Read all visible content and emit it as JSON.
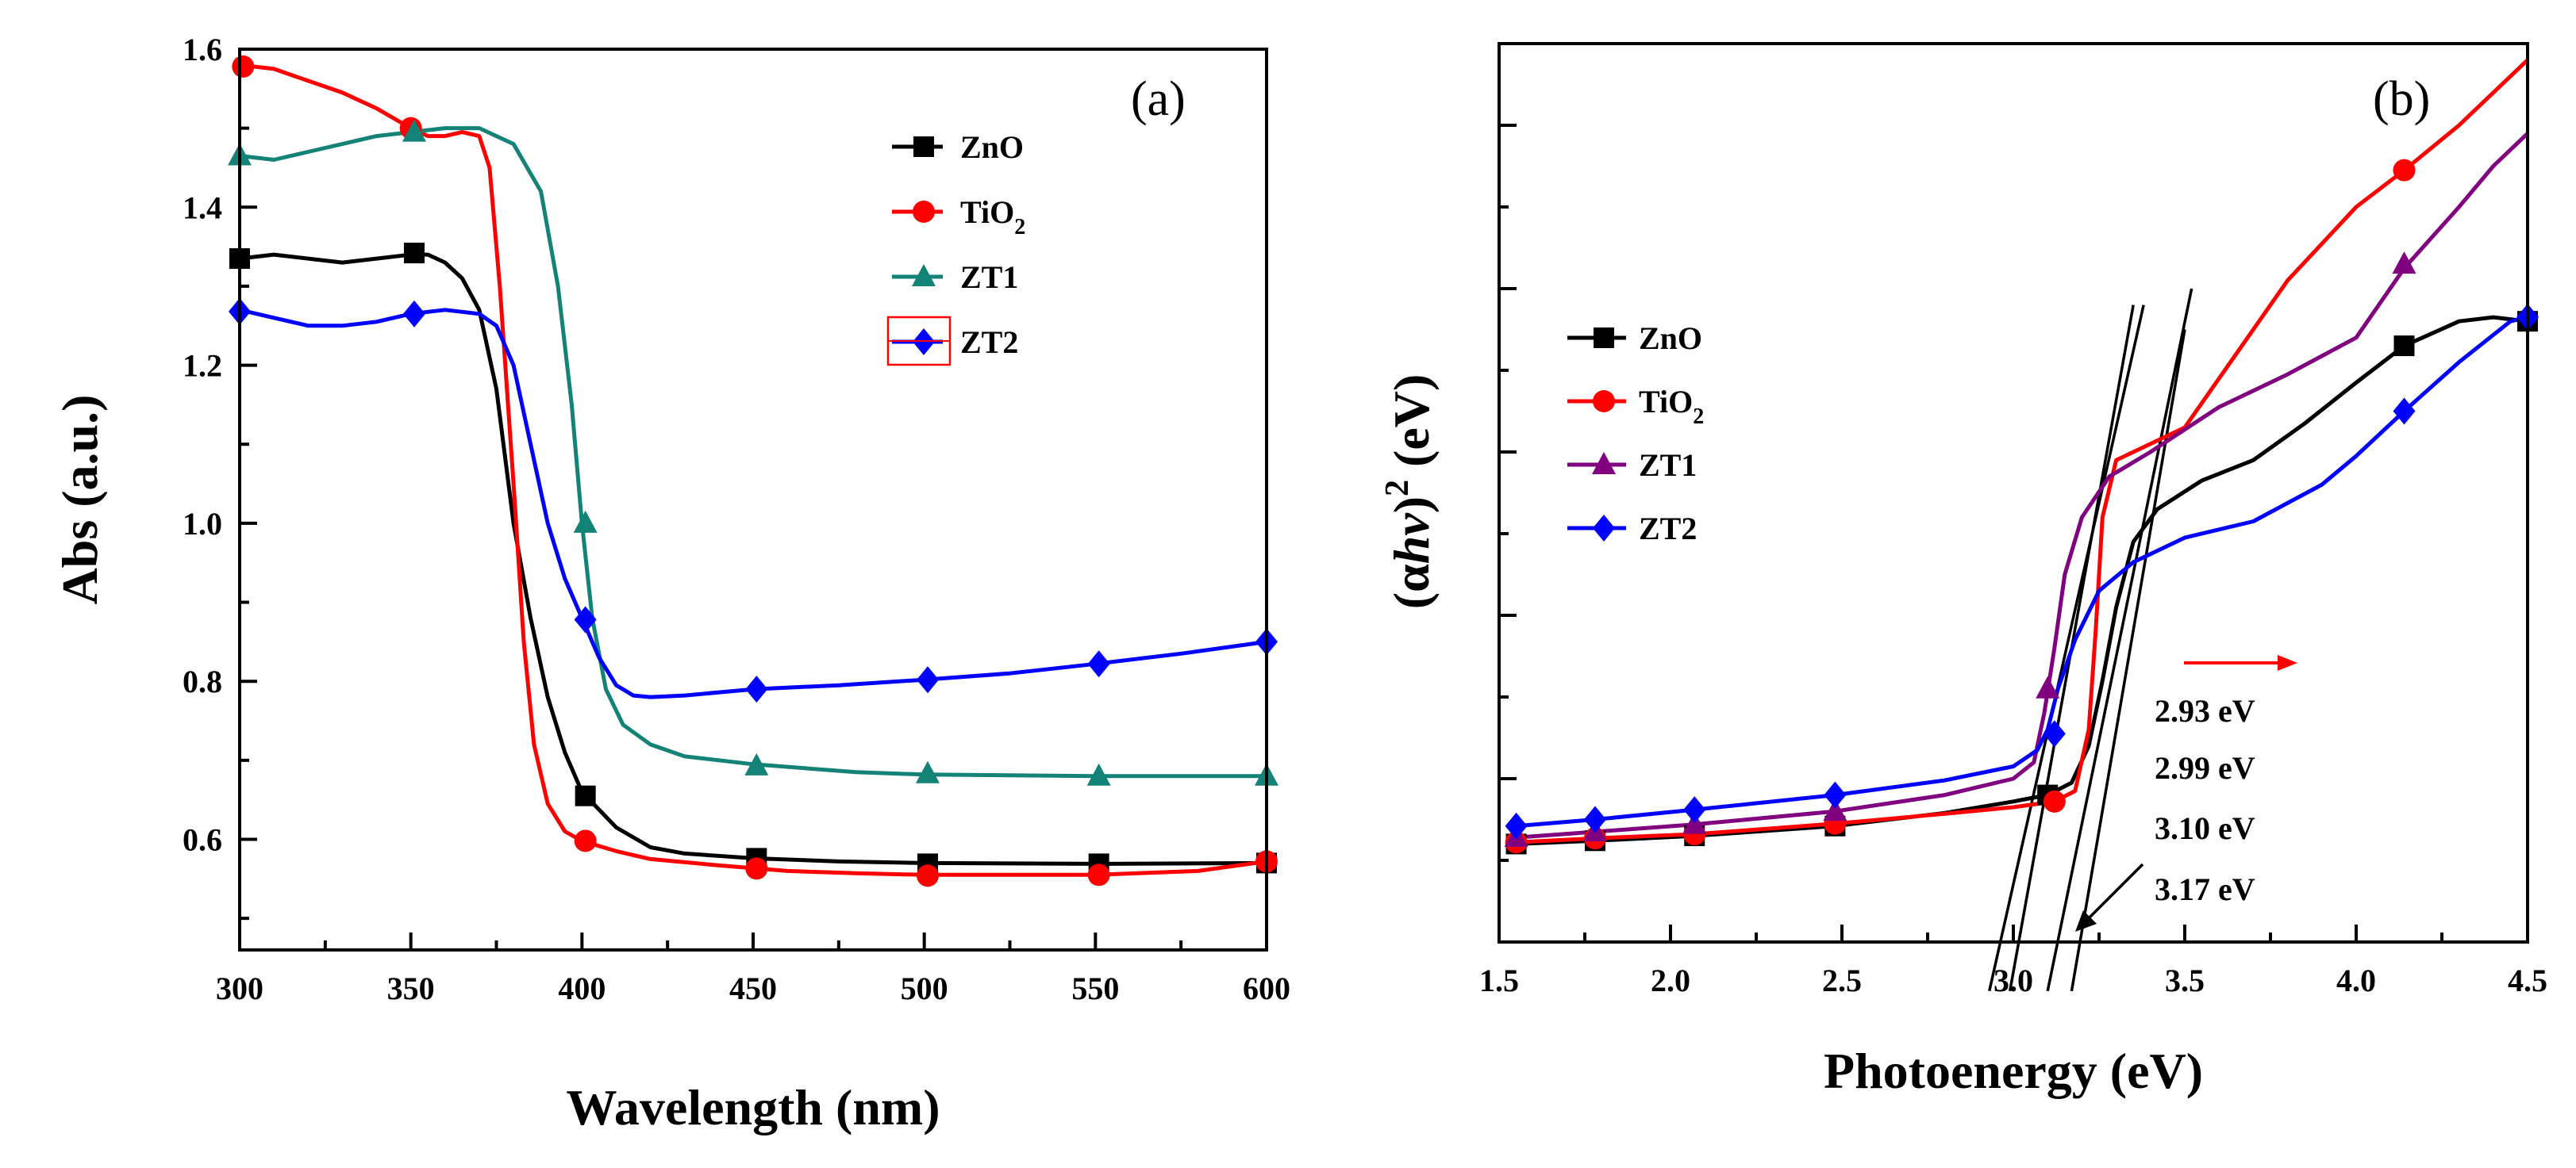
{
  "chart_data": [
    {
      "type": "line",
      "panel_label": "(a)",
      "xlabel": "Wavelength (nm)",
      "ylabel": "Abs (a.u.)",
      "xlim": [
        300,
        600
      ],
      "ylim": [
        0.46,
        1.6
      ],
      "xticks": [
        "300",
        "350",
        "400",
        "450",
        "500",
        "550",
        "600"
      ],
      "yticks": [
        "0.6",
        "0.8",
        "1.0",
        "1.2",
        "1.4",
        "1.6"
      ],
      "legend_position": "top-right",
      "series": [
        {
          "name": "ZnO",
          "sub": "",
          "color": "#000000",
          "marker": "square",
          "points": [
            [
              300,
              1.335
            ],
            [
              310,
              1.34
            ],
            [
              320,
              1.335
            ],
            [
              330,
              1.33
            ],
            [
              340,
              1.335
            ],
            [
              350,
              1.34
            ],
            [
              355,
              1.34
            ],
            [
              360,
              1.33
            ],
            [
              365,
              1.31
            ],
            [
              370,
              1.27
            ],
            [
              375,
              1.17
            ],
            [
              380,
              1.0
            ],
            [
              385,
              0.88
            ],
            [
              390,
              0.78
            ],
            [
              395,
              0.71
            ],
            [
              400,
              0.66
            ],
            [
              410,
              0.615
            ],
            [
              420,
              0.59
            ],
            [
              430,
              0.582
            ],
            [
              450,
              0.576
            ],
            [
              475,
              0.572
            ],
            [
              500,
              0.57
            ],
            [
              550,
              0.569
            ],
            [
              600,
              0.57
            ]
          ],
          "markers": [
            [
              300,
              1.335
            ],
            [
              351,
              1.342
            ],
            [
              401,
              0.655
            ],
            [
              451,
              0.576
            ],
            [
              501,
              0.569
            ],
            [
              551,
              0.569
            ],
            [
              600,
              0.57
            ]
          ]
        },
        {
          "name": "TiO",
          "sub": "2",
          "color": "#ff0000",
          "marker": "circle",
          "points": [
            [
              300,
              1.58
            ],
            [
              310,
              1.575
            ],
            [
              320,
              1.56
            ],
            [
              330,
              1.545
            ],
            [
              340,
              1.525
            ],
            [
              350,
              1.5
            ],
            [
              355,
              1.49
            ],
            [
              360,
              1.49
            ],
            [
              365,
              1.495
            ],
            [
              370,
              1.49
            ],
            [
              373,
              1.45
            ],
            [
              376,
              1.3
            ],
            [
              380,
              1.05
            ],
            [
              383,
              0.85
            ],
            [
              386,
              0.72
            ],
            [
              390,
              0.645
            ],
            [
              395,
              0.61
            ],
            [
              400,
              0.598
            ],
            [
              410,
              0.585
            ],
            [
              420,
              0.575
            ],
            [
              440,
              0.567
            ],
            [
              460,
              0.56
            ],
            [
              480,
              0.557
            ],
            [
              500,
              0.555
            ],
            [
              550,
              0.555
            ],
            [
              580,
              0.56
            ],
            [
              600,
              0.572
            ]
          ],
          "markers": [
            [
              301,
              1.578
            ],
            [
              350,
              1.5
            ],
            [
              401,
              0.598
            ],
            [
              451,
              0.563
            ],
            [
              501,
              0.554
            ],
            [
              551,
              0.555
            ],
            [
              600,
              0.572
            ]
          ]
        },
        {
          "name": "ZT1",
          "sub": "",
          "color": "#138277",
          "marker": "triangle",
          "points": [
            [
              300,
              1.465
            ],
            [
              310,
              1.46
            ],
            [
              320,
              1.47
            ],
            [
              330,
              1.48
            ],
            [
              340,
              1.49
            ],
            [
              350,
              1.495
            ],
            [
              360,
              1.5
            ],
            [
              370,
              1.5
            ],
            [
              380,
              1.48
            ],
            [
              388,
              1.42
            ],
            [
              393,
              1.3
            ],
            [
              397,
              1.15
            ],
            [
              400,
              1.0
            ],
            [
              403,
              0.88
            ],
            [
              407,
              0.79
            ],
            [
              412,
              0.745
            ],
            [
              420,
              0.72
            ],
            [
              430,
              0.705
            ],
            [
              450,
              0.695
            ],
            [
              480,
              0.685
            ],
            [
              500,
              0.682
            ],
            [
              550,
              0.68
            ],
            [
              600,
              0.68
            ]
          ],
          "markers": [
            [
              300,
              1.465
            ],
            [
              351,
              1.495
            ],
            [
              401,
              1.0
            ],
            [
              451,
              0.693
            ],
            [
              501,
              0.683
            ],
            [
              551,
              0.68
            ],
            [
              600,
              0.68
            ]
          ]
        },
        {
          "name": "ZT2",
          "sub": "",
          "color": "#0000ff",
          "marker": "diamond",
          "points": [
            [
              300,
              1.27
            ],
            [
              310,
              1.26
            ],
            [
              320,
              1.25
            ],
            [
              330,
              1.25
            ],
            [
              340,
              1.255
            ],
            [
              350,
              1.265
            ],
            [
              360,
              1.27
            ],
            [
              370,
              1.265
            ],
            [
              375,
              1.25
            ],
            [
              380,
              1.2
            ],
            [
              385,
              1.1
            ],
            [
              390,
              1.0
            ],
            [
              395,
              0.93
            ],
            [
              400,
              0.88
            ],
            [
              405,
              0.83
            ],
            [
              410,
              0.795
            ],
            [
              415,
              0.782
            ],
            [
              420,
              0.78
            ],
            [
              430,
              0.782
            ],
            [
              450,
              0.79
            ],
            [
              475,
              0.795
            ],
            [
              500,
              0.802
            ],
            [
              525,
              0.81
            ],
            [
              550,
              0.822
            ],
            [
              575,
              0.835
            ],
            [
              600,
              0.85
            ]
          ],
          "markers": [
            [
              300,
              1.268
            ],
            [
              351,
              1.265
            ],
            [
              401,
              0.878
            ],
            [
              451,
              0.79
            ],
            [
              501,
              0.802
            ],
            [
              551,
              0.822
            ],
            [
              600,
              0.85
            ]
          ]
        }
      ]
    },
    {
      "type": "line",
      "panel_label": "(b)",
      "xlabel": "Photoenergy (eV)",
      "ylabel_parts": [
        "(α",
        "hν",
        ")",
        "2",
        " (eV)"
      ],
      "xlim": [
        1.5,
        4.5
      ],
      "ylim": [
        0,
        11
      ],
      "xticks": [
        "1.5",
        "2.0",
        "2.5",
        "3.0",
        "3.5",
        "4.0",
        "4.5"
      ],
      "legend_position": "center-left",
      "series": [
        {
          "name": "ZnO",
          "sub": "",
          "color": "#000000",
          "marker": "square",
          "points": [
            [
              1.55,
              1.2
            ],
            [
              1.78,
              1.24
            ],
            [
              2.07,
              1.3
            ],
            [
              2.48,
              1.42
            ],
            [
              2.8,
              1.58
            ],
            [
              3.0,
              1.72
            ],
            [
              3.1,
              1.8
            ],
            [
              3.17,
              1.95
            ],
            [
              3.22,
              2.4
            ],
            [
              3.26,
              3.2
            ],
            [
              3.3,
              4.1
            ],
            [
              3.35,
              4.9
            ],
            [
              3.42,
              5.3
            ],
            [
              3.55,
              5.65
            ],
            [
              3.7,
              5.9
            ],
            [
              3.85,
              6.35
            ],
            [
              4.0,
              6.85
            ],
            [
              4.14,
              7.3
            ],
            [
              4.3,
              7.6
            ],
            [
              4.4,
              7.65
            ],
            [
              4.5,
              7.6
            ]
          ],
          "markers": [
            [
              1.55,
              1.2
            ],
            [
              1.78,
              1.24
            ],
            [
              2.07,
              1.3
            ],
            [
              2.48,
              1.42
            ],
            [
              3.1,
              1.8
            ],
            [
              4.14,
              7.3
            ],
            [
              4.5,
              7.6
            ]
          ]
        },
        {
          "name": "TiO",
          "sub": "2",
          "color": "#ff0000",
          "marker": "circle",
          "points": [
            [
              1.55,
              1.22
            ],
            [
              1.78,
              1.27
            ],
            [
              2.07,
              1.32
            ],
            [
              2.48,
              1.45
            ],
            [
              2.8,
              1.57
            ],
            [
              3.0,
              1.65
            ],
            [
              3.12,
              1.72
            ],
            [
              3.18,
              1.85
            ],
            [
              3.22,
              2.6
            ],
            [
              3.24,
              3.8
            ],
            [
              3.26,
              5.2
            ],
            [
              3.3,
              5.9
            ],
            [
              3.4,
              6.1
            ],
            [
              3.5,
              6.3
            ],
            [
              3.6,
              6.9
            ],
            [
              3.8,
              8.1
            ],
            [
              4.0,
              9.0
            ],
            [
              4.14,
              9.45
            ],
            [
              4.3,
              10.0
            ],
            [
              4.4,
              10.4
            ],
            [
              4.5,
              10.8
            ]
          ],
          "markers": [
            [
              1.55,
              1.22
            ],
            [
              1.78,
              1.27
            ],
            [
              2.07,
              1.32
            ],
            [
              2.48,
              1.45
            ],
            [
              3.12,
              1.72
            ],
            [
              4.14,
              9.45
            ]
          ]
        },
        {
          "name": "ZT1",
          "sub": "",
          "color": "#800080",
          "marker": "triangle",
          "points": [
            [
              1.55,
              1.28
            ],
            [
              1.78,
              1.35
            ],
            [
              2.07,
              1.44
            ],
            [
              2.48,
              1.6
            ],
            [
              2.8,
              1.8
            ],
            [
              3.0,
              2.0
            ],
            [
              3.06,
              2.2
            ],
            [
              3.09,
              2.8
            ],
            [
              3.12,
              3.6
            ],
            [
              3.15,
              4.5
            ],
            [
              3.2,
              5.2
            ],
            [
              3.28,
              5.7
            ],
            [
              3.4,
              6.0
            ],
            [
              3.6,
              6.55
            ],
            [
              3.8,
              6.95
            ],
            [
              4.0,
              7.4
            ],
            [
              4.14,
              8.25
            ],
            [
              4.3,
              9.0
            ],
            [
              4.4,
              9.5
            ],
            [
              4.5,
              9.9
            ]
          ],
          "markers": [
            [
              1.55,
              1.28
            ],
            [
              1.78,
              1.35
            ],
            [
              2.07,
              1.44
            ],
            [
              2.48,
              1.6
            ],
            [
              3.1,
              3.1
            ],
            [
              4.14,
              8.3
            ]
          ]
        },
        {
          "name": "ZT2",
          "sub": "",
          "color": "#0000ff",
          "marker": "diamond",
          "points": [
            [
              1.55,
              1.42
            ],
            [
              1.78,
              1.5
            ],
            [
              2.07,
              1.62
            ],
            [
              2.48,
              1.8
            ],
            [
              2.8,
              1.98
            ],
            [
              3.0,
              2.15
            ],
            [
              3.07,
              2.35
            ],
            [
              3.1,
              2.6
            ],
            [
              3.13,
              3.1
            ],
            [
              3.18,
              3.7
            ],
            [
              3.25,
              4.3
            ],
            [
              3.35,
              4.65
            ],
            [
              3.5,
              4.95
            ],
            [
              3.7,
              5.15
            ],
            [
              3.9,
              5.6
            ],
            [
              4.0,
              5.95
            ],
            [
              4.14,
              6.5
            ],
            [
              4.3,
              7.1
            ],
            [
              4.45,
              7.6
            ],
            [
              4.5,
              7.65
            ]
          ],
          "markers": [
            [
              1.55,
              1.42
            ],
            [
              1.78,
              1.5
            ],
            [
              2.07,
              1.62
            ],
            [
              2.48,
              1.8
            ],
            [
              3.12,
              2.55
            ],
            [
              4.14,
              6.5
            ],
            [
              4.5,
              7.65
            ]
          ]
        }
      ],
      "tangent_lines": [
        {
          "x1": 2.93,
          "y1": -0.6,
          "x2": 3.38,
          "y2": 7.8
        },
        {
          "x1": 2.99,
          "y1": -0.6,
          "x2": 3.35,
          "y2": 7.8
        },
        {
          "x1": 3.1,
          "y1": -0.6,
          "x2": 3.52,
          "y2": 8.0
        },
        {
          "x1": 3.17,
          "y1": -0.6,
          "x2": 3.5,
          "y2": 7.5
        }
      ],
      "annotations": [
        "2.93 eV",
        "2.99 eV",
        "3.10 eV",
        "3.17 eV"
      ]
    }
  ]
}
